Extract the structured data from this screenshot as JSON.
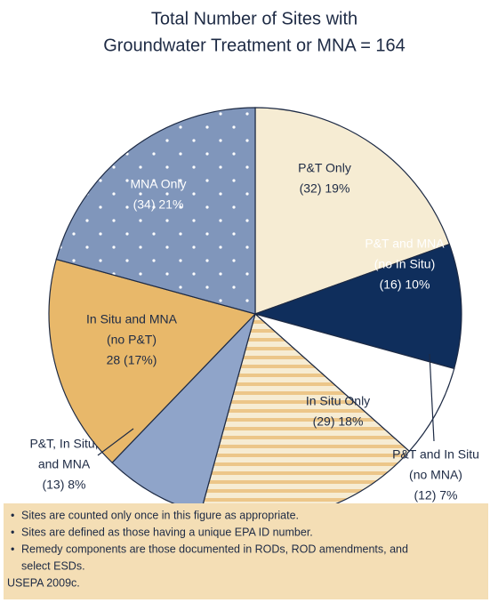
{
  "chart_data": {
    "type": "pie",
    "title": [
      "Total Number of Sites with",
      "Groundwater Treatment or MNA = 164"
    ],
    "categories": [
      [
        "P&T Only"
      ],
      [
        "P&T and MNA",
        "(no In Situ)"
      ],
      [
        "P&T and In Situ",
        "(no MNA)"
      ],
      [
        "In Situ Only"
      ],
      [
        "P&T, In Situ,",
        "and MNA"
      ],
      [
        "In Situ and MNA",
        "(no P&T)"
      ],
      [
        "MNA Only"
      ]
    ],
    "values": [
      32,
      16,
      12,
      29,
      13,
      28,
      34
    ],
    "value_labels": [
      "(32) 19%",
      "(16) 10%",
      "(12) 7%",
      "(29) 18%",
      "(13) 8%",
      "28 (17%)",
      "(34) 21%"
    ],
    "colors": [
      "#f6ecd3",
      "#0f2e5c",
      "#ffffff",
      "#f6ecd3",
      "#8fa4c9",
      "#e8b86a",
      "#8096bb"
    ],
    "patterns": [
      "none",
      "none",
      "none",
      "stripes",
      "none",
      "none",
      "dots"
    ],
    "notes": [
      "Sites are counted only once in this figure as appropriate.",
      "Sites are defined as those having a unique EPA ID number.",
      "Remedy components are those documented in RODs, ROD amendments, and",
      "select ESDs."
    ],
    "source": "USEPA 2009c."
  }
}
